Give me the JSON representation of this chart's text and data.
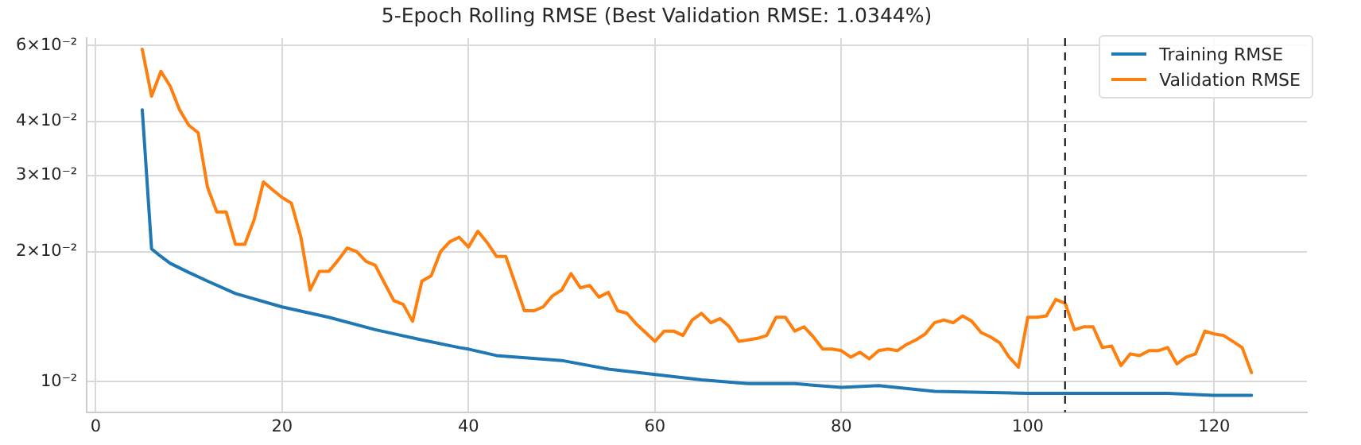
{
  "chart_data": {
    "type": "line",
    "title": "5-Epoch Rolling RMSE (Best Validation RMSE: 1.0344%)",
    "log": "y",
    "grid": true,
    "legend": "top right",
    "marker": "none",
    "line_style": "solid",
    "xlim": [
      -0.95,
      129.95
    ],
    "xticks": [
      0,
      20,
      40,
      60,
      80,
      100,
      120
    ],
    "ylim": [
      0.0085,
      0.0624
    ],
    "yticks": [
      {
        "value": 0.01,
        "label": "10⁻²"
      },
      {
        "value": 0.02,
        "label": "2×10⁻²"
      },
      {
        "value": 0.03,
        "label": "3×10⁻²"
      },
      {
        "value": 0.04,
        "label": "4×10⁻²"
      },
      {
        "value": 0.06,
        "label": "6×10⁻²"
      }
    ],
    "ref_lines": [
      {
        "axis": "x",
        "value": 104,
        "color": "#000000",
        "line_style": "dashed"
      }
    ],
    "series": [
      {
        "name": "Training RMSE",
        "color": "#1f77b4",
        "x": [
          5,
          6,
          7,
          8,
          10,
          12,
          15,
          20,
          25,
          30,
          35,
          39,
          40,
          43,
          50,
          55,
          60,
          65,
          70,
          75,
          80,
          84,
          90,
          100,
          104,
          110,
          115,
          120,
          124
        ],
        "values": [
          0.0426,
          0.0203,
          0.0195,
          0.0188,
          0.0179,
          0.0171,
          0.016,
          0.0149,
          0.0141,
          0.0132,
          0.0125,
          0.012,
          0.0119,
          0.0115,
          0.0112,
          0.0107,
          0.0104,
          0.0101,
          0.0099,
          0.0099,
          0.0097,
          0.0098,
          0.0095,
          0.0094,
          0.0094,
          0.0094,
          0.0094,
          0.0093,
          0.0093
        ]
      },
      {
        "name": "Validation RMSE",
        "color": "#ff7f0e",
        "x": [
          5,
          6,
          7,
          8,
          9,
          10,
          11,
          12,
          13,
          14,
          15,
          16,
          17,
          18,
          19,
          20,
          21,
          22,
          23,
          24,
          25,
          26,
          27,
          28,
          29,
          30,
          31,
          32,
          33,
          34,
          35,
          36,
          37,
          38,
          39,
          40,
          41,
          42,
          43,
          44,
          45,
          46,
          47,
          48,
          49,
          50,
          51,
          52,
          53,
          54,
          55,
          56,
          57,
          58,
          59,
          60,
          61,
          62,
          63,
          64,
          65,
          66,
          67,
          68,
          69,
          70,
          71,
          72,
          73,
          74,
          75,
          76,
          77,
          78,
          79,
          80,
          81,
          82,
          83,
          84,
          85,
          86,
          87,
          88,
          89,
          90,
          91,
          92,
          93,
          94,
          95,
          96,
          97,
          98,
          99,
          100,
          101,
          102,
          103,
          104,
          105,
          106,
          107,
          108,
          109,
          110,
          111,
          112,
          113,
          114,
          115,
          116,
          117,
          118,
          119,
          120,
          121,
          122,
          123,
          124
        ],
        "values": [
          0.0588,
          0.0458,
          0.0523,
          0.0483,
          0.0426,
          0.0392,
          0.0377,
          0.0282,
          0.0247,
          0.0247,
          0.0208,
          0.0208,
          0.0237,
          0.029,
          0.0278,
          0.0267,
          0.0259,
          0.0217,
          0.0163,
          0.018,
          0.018,
          0.0191,
          0.0204,
          0.02,
          0.019,
          0.0186,
          0.0169,
          0.0154,
          0.0151,
          0.0138,
          0.0171,
          0.0176,
          0.02,
          0.0211,
          0.0216,
          0.0205,
          0.0223,
          0.021,
          0.0195,
          0.0195,
          0.0169,
          0.0146,
          0.0146,
          0.0149,
          0.0158,
          0.0163,
          0.0178,
          0.0165,
          0.0167,
          0.0157,
          0.0161,
          0.0146,
          0.0144,
          0.0136,
          0.013,
          0.0124,
          0.0131,
          0.0131,
          0.0128,
          0.0139,
          0.0144,
          0.0137,
          0.014,
          0.0134,
          0.0124,
          0.0125,
          0.0126,
          0.0128,
          0.0141,
          0.0141,
          0.0131,
          0.0134,
          0.0127,
          0.0119,
          0.0119,
          0.0118,
          0.0114,
          0.0117,
          0.0113,
          0.0118,
          0.0119,
          0.0118,
          0.0122,
          0.0125,
          0.0129,
          0.0137,
          0.0139,
          0.0137,
          0.0142,
          0.0138,
          0.013,
          0.0127,
          0.0123,
          0.0114,
          0.0108,
          0.0141,
          0.0141,
          0.0142,
          0.0155,
          0.0152,
          0.0132,
          0.0134,
          0.0134,
          0.012,
          0.0121,
          0.0109,
          0.0116,
          0.0115,
          0.0118,
          0.0118,
          0.012,
          0.011,
          0.0114,
          0.0116,
          0.0131,
          0.0129,
          0.0128,
          0.0124,
          0.012,
          0.0105
        ]
      }
    ]
  }
}
